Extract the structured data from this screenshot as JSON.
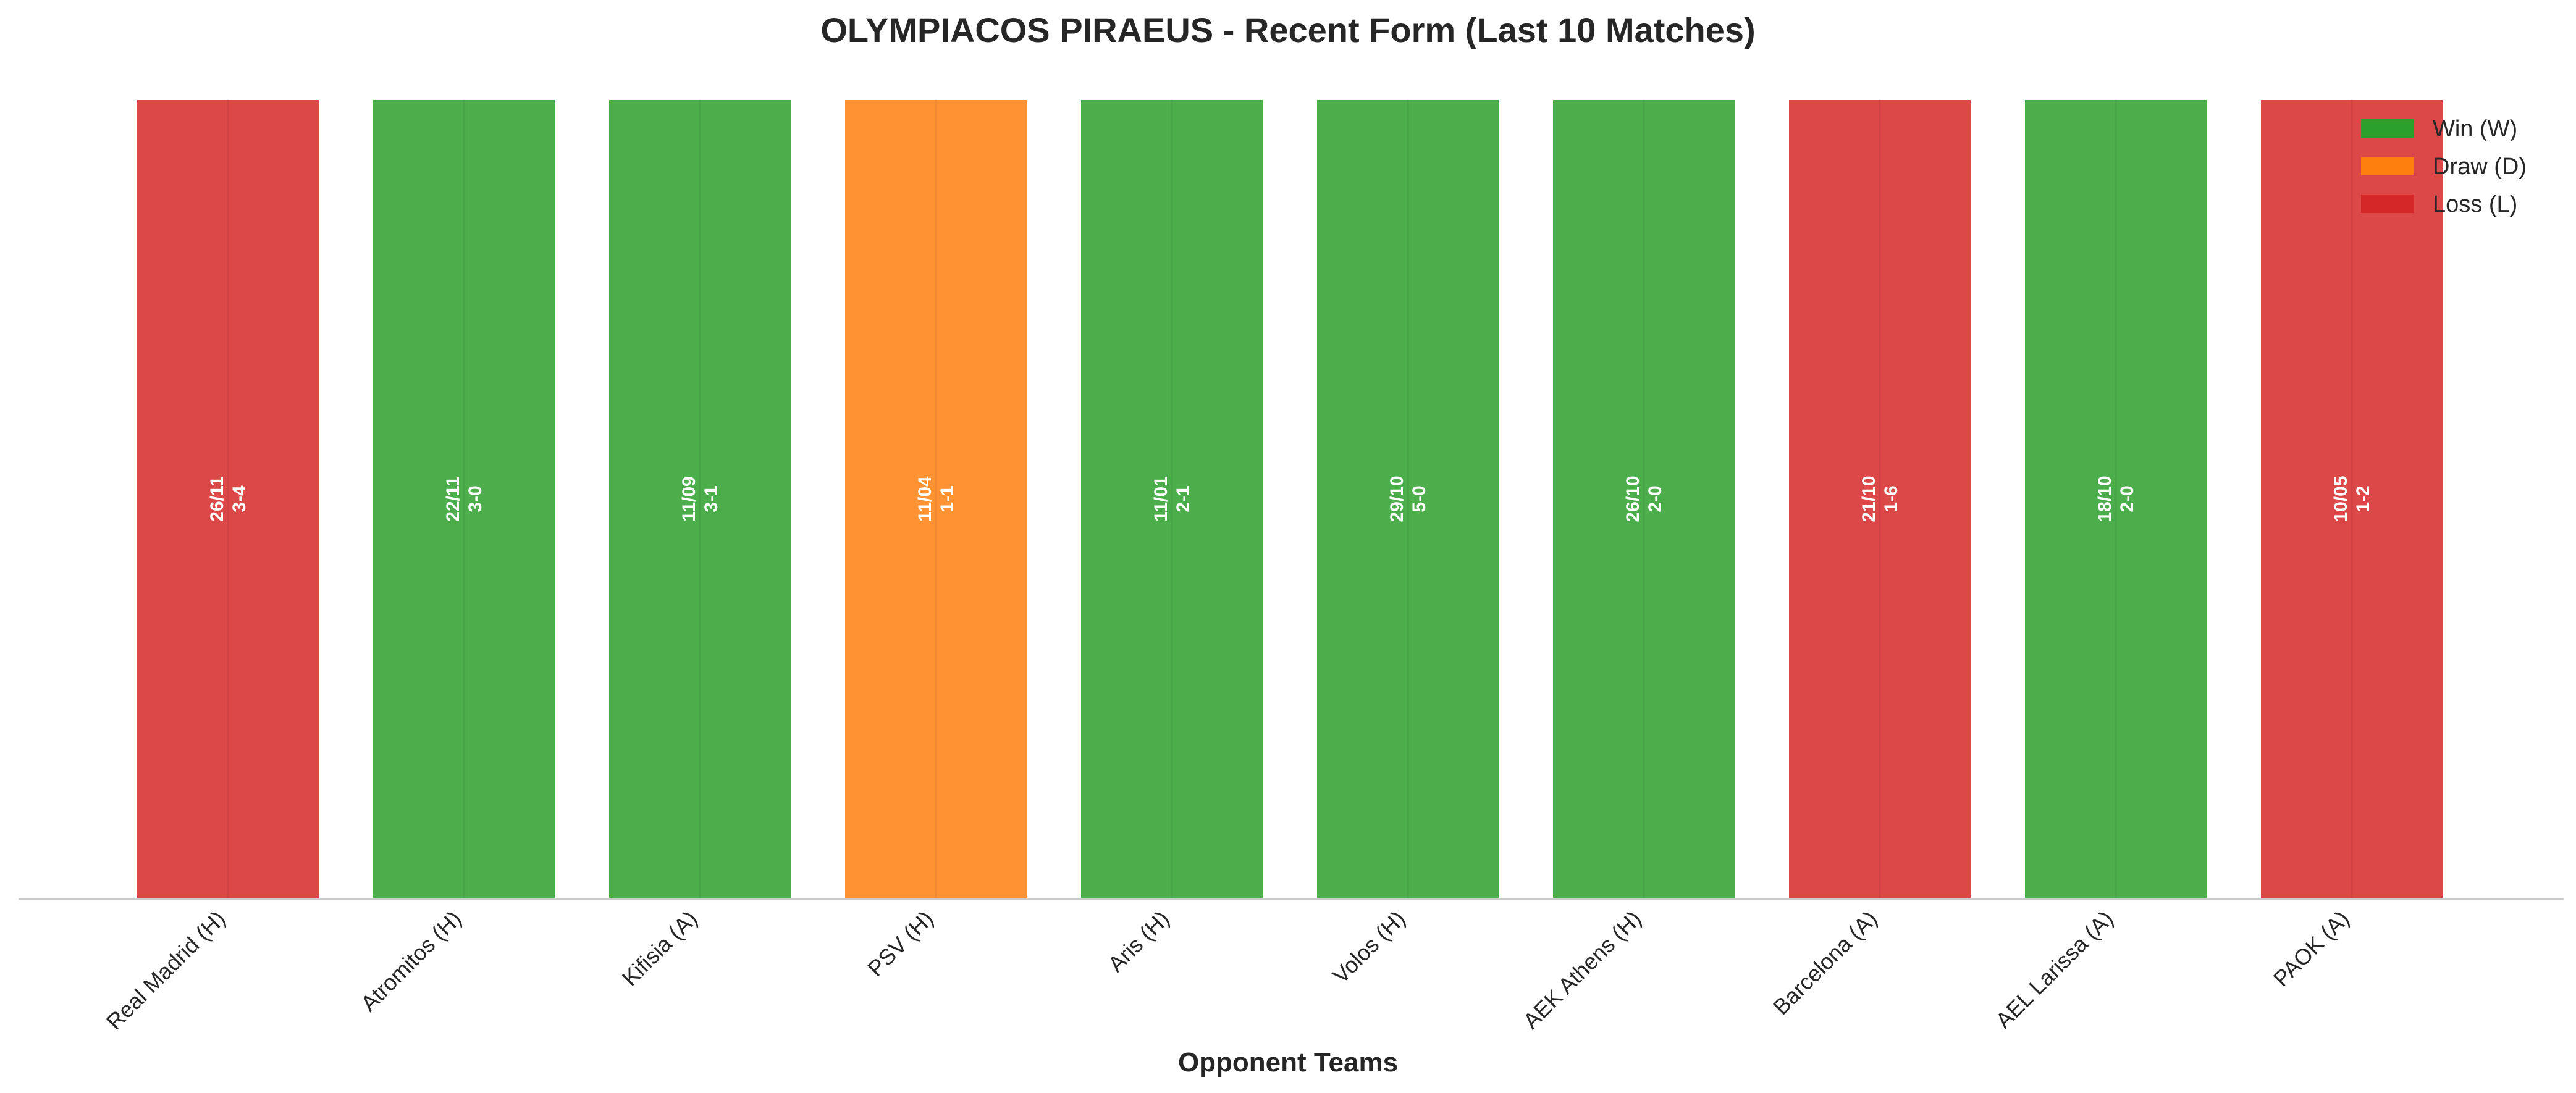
{
  "chart_data": {
    "type": "bar",
    "title": "OLYMPIACOS PIRAEUS - Recent Form (Last 10 Matches)",
    "xlabel": "Opponent Teams",
    "ylabel": "",
    "categories": [
      "Real Madrid (H)",
      "Atromitos (H)",
      "Kifisia (A)",
      "PSV (H)",
      "Aris (H)",
      "Volos (H)",
      "AEK Athens (H)",
      "Barcelona (A)",
      "AEL Larissa (A)",
      "PAOK (A)"
    ],
    "values": [
      1,
      1,
      1,
      1,
      1,
      1,
      1,
      1,
      1,
      1
    ],
    "ylim": [
      0,
      1
    ],
    "results": [
      "L",
      "W",
      "W",
      "D",
      "W",
      "W",
      "W",
      "L",
      "W",
      "L"
    ],
    "dates": [
      "26/11",
      "22/11",
      "11/09",
      "11/04",
      "11/01",
      "29/10",
      "26/10",
      "21/10",
      "18/10",
      "10/05"
    ],
    "scores": [
      "3-4",
      "3-0",
      "3-1",
      "1-1",
      "2-1",
      "5-0",
      "2-0",
      "1-6",
      "2-0",
      "1-2"
    ],
    "grid": false,
    "legend_position": "top-right",
    "legend": [
      {
        "key": "W",
        "label": "Win (W)",
        "color": "#2ca02c"
      },
      {
        "key": "D",
        "label": "Draw (D)",
        "color": "#ff7f0e"
      },
      {
        "key": "L",
        "label": "Loss (L)",
        "color": "#d62728"
      }
    ]
  }
}
